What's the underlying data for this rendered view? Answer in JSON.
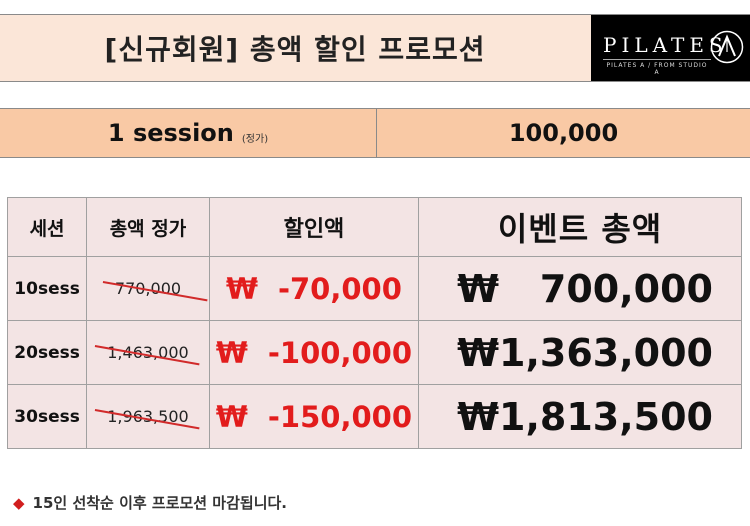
{
  "header": {
    "title": "[신규회원] 총액 할인 프로모션",
    "logo_main": "PILATES",
    "logo_sub": "PILATES A / FROM STUDIO A"
  },
  "session": {
    "name": "1 session",
    "tag": "(정가)",
    "price": "100,000"
  },
  "table": {
    "headers": [
      "세션",
      "총액 정가",
      "할인액",
      "이벤트 총액"
    ],
    "rows": [
      {
        "session": "10sess",
        "original": "770,000",
        "discount_symbol": "₩",
        "discount": "-70,000",
        "total_symbol": "₩",
        "total": "700,000"
      },
      {
        "session": "20sess",
        "original": "1,463,000",
        "discount_symbol": "₩",
        "discount": "-100,000",
        "total_symbol": "₩",
        "total": "1,363,000"
      },
      {
        "session": "30sess",
        "original": "1,963,500",
        "discount_symbol": "₩",
        "discount": "-150,000",
        "total_symbol": "₩",
        "total": "1,813,500"
      }
    ]
  },
  "notice": {
    "bullet": "◆",
    "text": "15인 선착순 이후 프로모션 마감됩니다."
  },
  "colors": {
    "header_bg": "#fbe6d8",
    "session_bg": "#f9c9a5",
    "table_bg": "#f3e4e4",
    "accent_red": "#e01414"
  }
}
